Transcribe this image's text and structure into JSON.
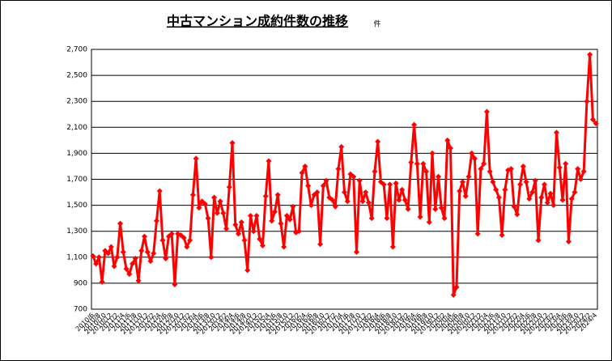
{
  "chart_data": {
    "type": "line",
    "title": "中古マンション成約件数の推移",
    "unit": "件",
    "categories": [
      "2010/6",
      null,
      "2010/8",
      null,
      "2010/10",
      null,
      "2010/12",
      null,
      "2011/2",
      null,
      "2011/4",
      null,
      "2011/6",
      null,
      "2011/8",
      null,
      "2011/10",
      null,
      "2011/12",
      null,
      "2012/2",
      null,
      "2012/4",
      null,
      "2012/6",
      null,
      "2012/8",
      null,
      "2012/10",
      null,
      "2012/12",
      null,
      "2013/2",
      null,
      "2013/4",
      null,
      "2013/6",
      null,
      "2013/8",
      null,
      "2013/10",
      null,
      "2013/12",
      null,
      "2014/2",
      null,
      "2014/4",
      null,
      "2014/6",
      null,
      "2014/8",
      null,
      "2014/10",
      null,
      "2014/12",
      null,
      "2015/2",
      null,
      "2015/4",
      null,
      "2015/6",
      null,
      "2015/8",
      null,
      "2015/10",
      null,
      "2015/12",
      null,
      "2016/2",
      null,
      "2016/4",
      null,
      "2016/6",
      null,
      "2016/8",
      null,
      "2016/10",
      null,
      "2016/12",
      null,
      "2017/2",
      null,
      "2017/4",
      null,
      "2017/6",
      null,
      "2017/8",
      null,
      "2017/10",
      null,
      "2017/12",
      null,
      "2018/2",
      null,
      "2018/4",
      null,
      "2018/6",
      null,
      "2018/8",
      null,
      "2018/10",
      null,
      "2018/12",
      null,
      "2019/2",
      null,
      "2019/4",
      null,
      "2019/6",
      null,
      "2019/8",
      null,
      "2019/10",
      null,
      "2019/12",
      null,
      "2020/2",
      null,
      "2020/4",
      null,
      "2020/6",
      null,
      "2020/8",
      null,
      "2020/10",
      null,
      "2020/12",
      null,
      "2021/2",
      null,
      "2021/4",
      null,
      "2021/6",
      null,
      "2021/8",
      null,
      "2021/10",
      null,
      "2021/12",
      null,
      "2022/2",
      null,
      "2022/4",
      null,
      "2022/6",
      null,
      "2022/8",
      null,
      "2022/10",
      null,
      "2022/12",
      null,
      "2023/2",
      null,
      "2023/4",
      null,
      "2023/6",
      null,
      "2023/8",
      null,
      "2023/10",
      null,
      "2023/12",
      null,
      "2024/2",
      null,
      "2024/4"
    ],
    "series": [
      {
        "color": "#ff0000",
        "values": [
          1110,
          1050,
          1100,
          910,
          1150,
          1130,
          1180,
          1030,
          1100,
          1360,
          1140,
          1010,
          970,
          1050,
          1090,
          920,
          1150,
          1260,
          1140,
          1070,
          1130,
          1380,
          1610,
          1230,
          1090,
          1260,
          1280,
          890,
          1280,
          1270,
          1250,
          1180,
          1230,
          1580,
          1860,
          1480,
          1530,
          1510,
          1400,
          1100,
          1560,
          1440,
          1530,
          1440,
          1320,
          1640,
          1980,
          1350,
          1280,
          1370,
          1230,
          1000,
          1420,
          1300,
          1420,
          1240,
          1190,
          1570,
          1840,
          1380,
          1450,
          1580,
          1360,
          1180,
          1420,
          1390,
          1490,
          1290,
          1300,
          1750,
          1800,
          1650,
          1500,
          1580,
          1600,
          1200,
          1650,
          1690,
          1560,
          1540,
          1490,
          1780,
          1950,
          1600,
          1530,
          1740,
          1720,
          1140,
          1690,
          1530,
          1600,
          1520,
          1400,
          1760,
          1990,
          1680,
          1660,
          1400,
          1660,
          1180,
          1670,
          1540,
          1620,
          1540,
          1470,
          1830,
          2120,
          1820,
          1410,
          1820,
          1760,
          1370,
          1900,
          1470,
          1720,
          1480,
          1400,
          2000,
          1940,
          810,
          870,
          1610,
          1680,
          1570,
          1720,
          1900,
          1860,
          1280,
          1780,
          1820,
          2220,
          1760,
          1680,
          1620,
          1560,
          1270,
          1620,
          1770,
          1780,
          1490,
          1430,
          1660,
          1800,
          1680,
          1550,
          1600,
          1690,
          1230,
          1560,
          1660,
          1520,
          1590,
          1500,
          2060,
          1790,
          1540,
          1820,
          1220,
          1550,
          1600,
          1780,
          1700,
          1760,
          2300,
          2660,
          2160,
          2130
        ]
      }
    ],
    "ylim": [
      700,
      2700
    ],
    "yticks": [
      {
        "value": 700,
        "label": "700"
      },
      {
        "value": 900,
        "label": "900"
      },
      {
        "value": 1100,
        "label": "1,100"
      },
      {
        "value": 1300,
        "label": "1,300"
      },
      {
        "value": 1500,
        "label": "1,500"
      },
      {
        "value": 1700,
        "label": "1,700"
      },
      {
        "value": 1900,
        "label": "1,900"
      },
      {
        "value": 2100,
        "label": "2,100"
      },
      {
        "value": 2300,
        "label": "2,300"
      },
      {
        "value": 2500,
        "label": "2,500"
      },
      {
        "value": 2700,
        "label": "2,700"
      }
    ],
    "grid": true
  }
}
